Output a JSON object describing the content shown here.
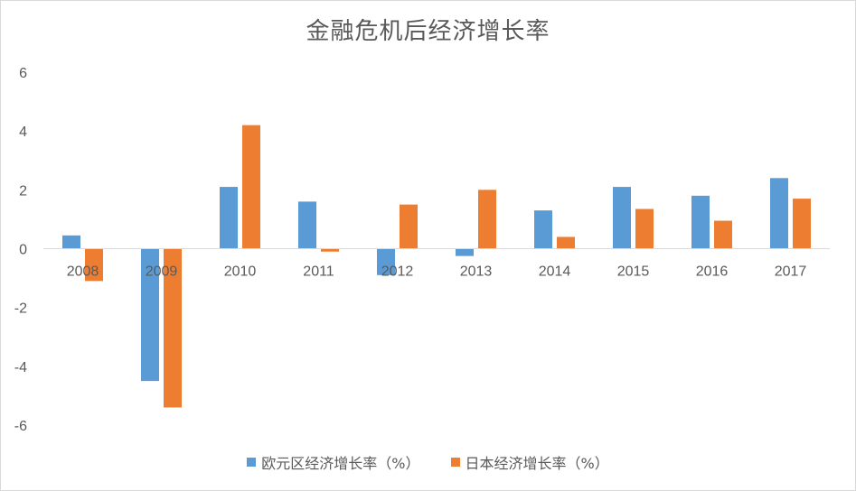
{
  "chart_data": {
    "type": "bar",
    "title": "金融危机后经济增长率",
    "categories": [
      "2008",
      "2009",
      "2010",
      "2011",
      "2012",
      "2013",
      "2014",
      "2015",
      "2016",
      "2017"
    ],
    "series": [
      {
        "name": "欧元区经济增长率（%）",
        "color": "#5b9bd5",
        "values": [
          0.45,
          -4.5,
          2.1,
          1.6,
          -0.9,
          -0.25,
          1.3,
          2.1,
          1.8,
          2.4
        ]
      },
      {
        "name": "日本经济增长率（%）",
        "color": "#ed7d31",
        "values": [
          -1.1,
          -5.4,
          4.2,
          -0.1,
          1.5,
          2.0,
          0.4,
          1.35,
          0.95,
          1.7
        ]
      }
    ],
    "ylim": [
      -6,
      6
    ],
    "yticks": [
      "-6",
      "-4",
      "-2",
      "0",
      "2",
      "4",
      "6"
    ],
    "grid": false,
    "legend": "bottom"
  }
}
